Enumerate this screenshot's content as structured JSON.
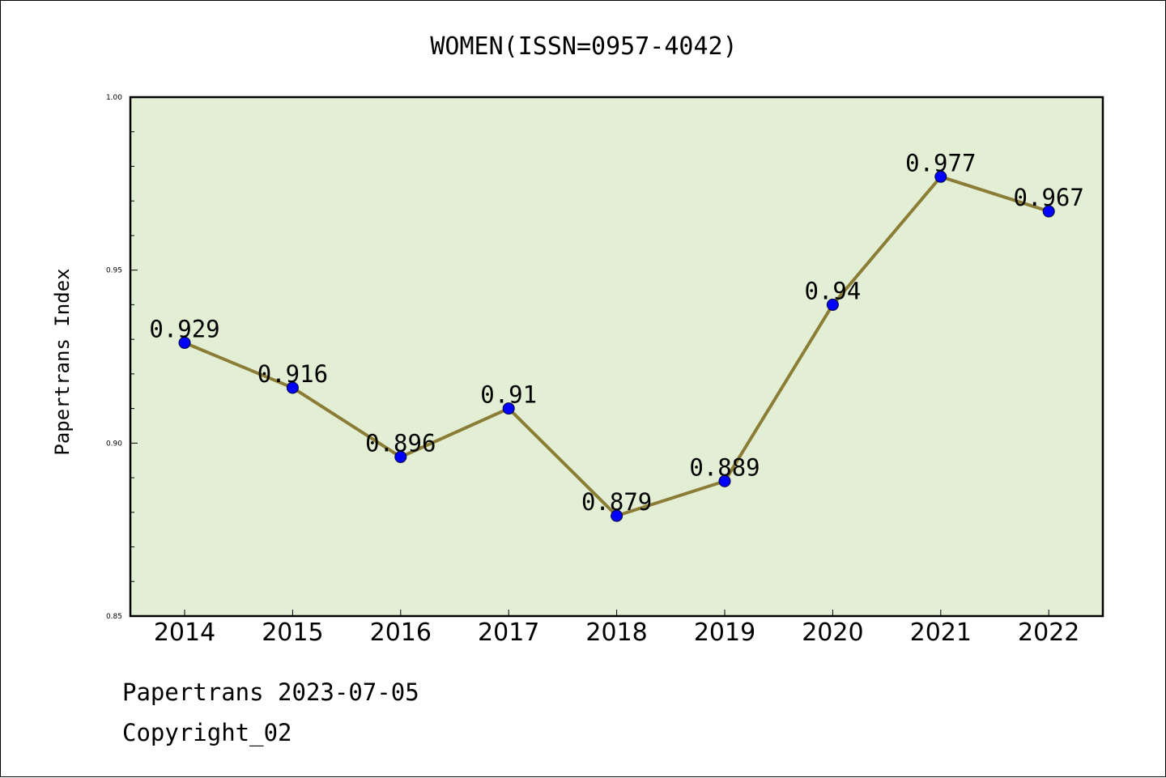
{
  "chart_data": {
    "type": "line",
    "title": "WOMEN(ISSN=0957-4042)",
    "xlabel": "",
    "ylabel": "Papertrans Index",
    "categories": [
      "2014",
      "2015",
      "2016",
      "2017",
      "2018",
      "2019",
      "2020",
      "2021",
      "2022"
    ],
    "series": [
      {
        "values": [
          0.929,
          0.916,
          0.896,
          0.91,
          0.879,
          0.889,
          0.94,
          0.977,
          0.967
        ],
        "data_labels": [
          "0.929",
          "0.916",
          "0.896",
          "0.91",
          "0.879",
          "0.889",
          "0.94",
          "0.977",
          "0.967"
        ]
      }
    ],
    "ylim": [
      0.85,
      1.0
    ],
    "yticks": [
      "0.85",
      "0.90",
      "0.95",
      "1.00"
    ],
    "grid": false,
    "colors": {
      "plot_background": "#e2efd5",
      "line": "#8c7d36",
      "marker": "#0000ff"
    }
  },
  "footer": {
    "line1": "Papertrans 2023-07-05",
    "line2": "Copyright_02"
  }
}
